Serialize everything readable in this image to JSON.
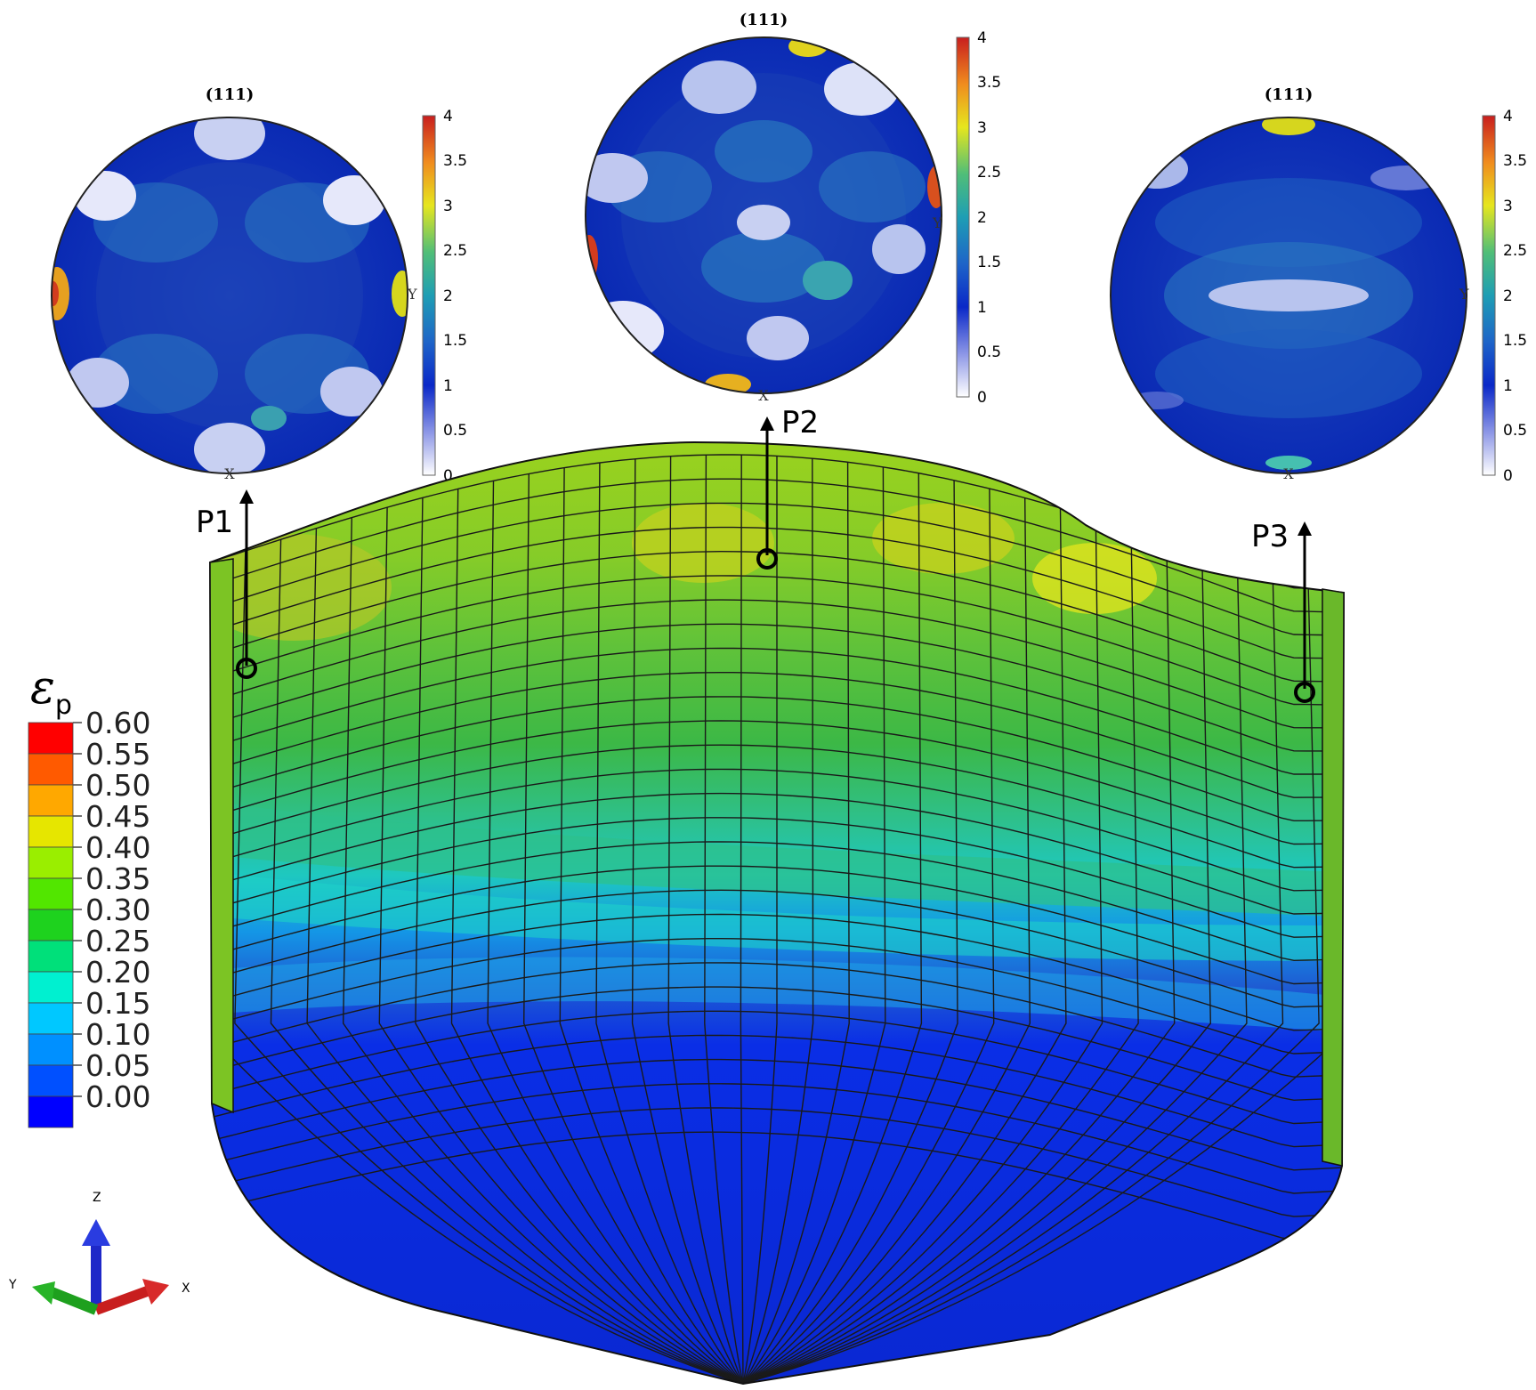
{
  "pole_figures": [
    {
      "id": "p1",
      "title": "(111)",
      "x_label": "X",
      "y_label": "Y",
      "scale_ticks": [
        "4",
        "3.5",
        "3",
        "2.5",
        "2",
        "1.5",
        "1",
        "0.5",
        "0"
      ]
    },
    {
      "id": "p2",
      "title": "(111)",
      "x_label": "X",
      "y_label": "Y",
      "scale_ticks": [
        "4",
        "3.5",
        "3",
        "2.5",
        "2",
        "1.5",
        "1",
        "0.5",
        "0"
      ]
    },
    {
      "id": "p3",
      "title": "(111)",
      "x_label": "X",
      "y_label": "Y",
      "scale_ticks": [
        "4",
        "3.5",
        "3",
        "2.5",
        "2",
        "1.5",
        "1",
        "0.5",
        "0"
      ]
    }
  ],
  "points": {
    "p1": "P1",
    "p2": "P2",
    "p3": "P3"
  },
  "legend": {
    "symbol": "ε",
    "subscript": "p",
    "values": [
      "0.60",
      "0.55",
      "0.50",
      "0.45",
      "0.40",
      "0.35",
      "0.30",
      "0.25",
      "0.20",
      "0.15",
      "0.10",
      "0.05",
      "0.00"
    ],
    "colors": [
      "#ff0000",
      "#ff5a00",
      "#ffa800",
      "#e6e600",
      "#9aee00",
      "#52e600",
      "#1ed21e",
      "#00e07a",
      "#00f0d0",
      "#00c8ff",
      "#0090ff",
      "#0050ff",
      "#0000ff"
    ]
  },
  "triad": {
    "z": "Z",
    "y": "Y",
    "x": "X"
  }
}
